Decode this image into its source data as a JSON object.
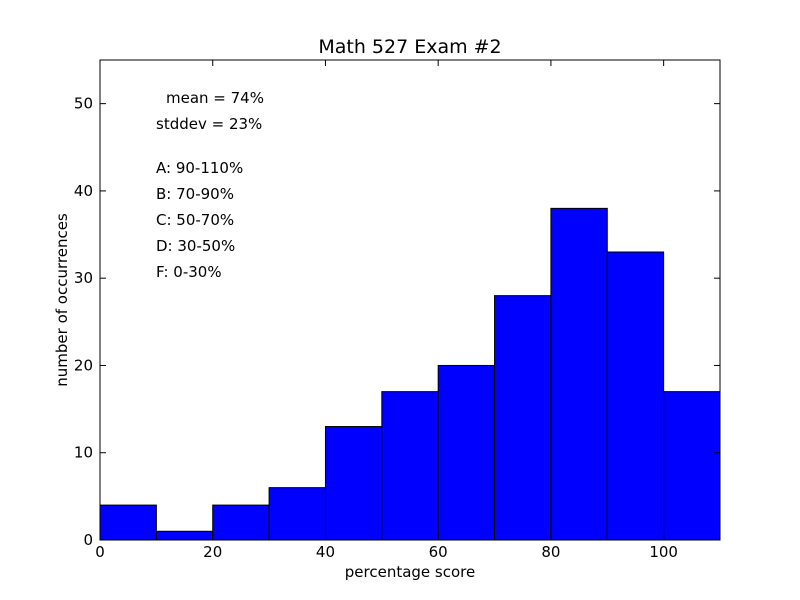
{
  "chart_data": {
    "type": "bar",
    "title": "Math 527 Exam #2",
    "xlabel": "percentage score",
    "ylabel": "number of occurrences",
    "xlim": [
      0,
      110
    ],
    "ylim": [
      0,
      55
    ],
    "xticks": [
      0,
      20,
      40,
      60,
      80,
      100
    ],
    "yticks": [
      0,
      10,
      20,
      30,
      40,
      50
    ],
    "bin_edges": [
      0,
      10,
      20,
      30,
      40,
      50,
      60,
      70,
      80,
      90,
      100,
      110
    ],
    "values": [
      4,
      1,
      4,
      6,
      13,
      17,
      20,
      28,
      38,
      33,
      17
    ],
    "bar_color": "#0000ff",
    "grid": false,
    "annotations": {
      "mean": "mean = 74%",
      "stddev": "stddev = 23%",
      "grades": [
        "A: 90-110%",
        "B: 70-90%",
        "C: 50-70%",
        "D: 30-50%",
        "F: 0-30%"
      ]
    }
  }
}
